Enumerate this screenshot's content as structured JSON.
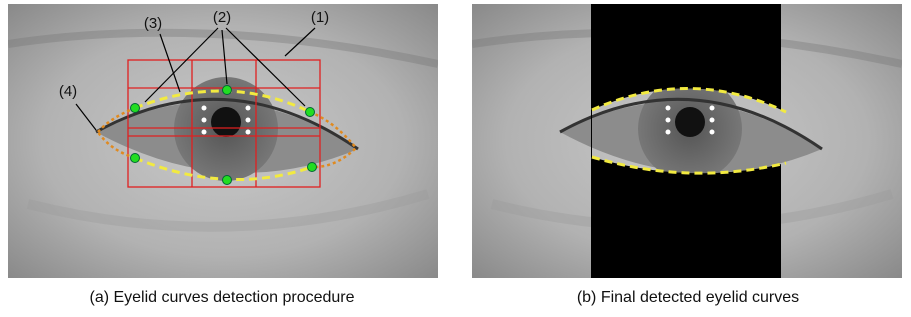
{
  "panels": [
    {
      "caption": "(a) Eyelid curves detection procedure",
      "labels": [
        "(1)",
        "(2)",
        "(3)",
        "(4)"
      ]
    },
    {
      "caption": "(b) Final detected eyelid curves"
    }
  ]
}
